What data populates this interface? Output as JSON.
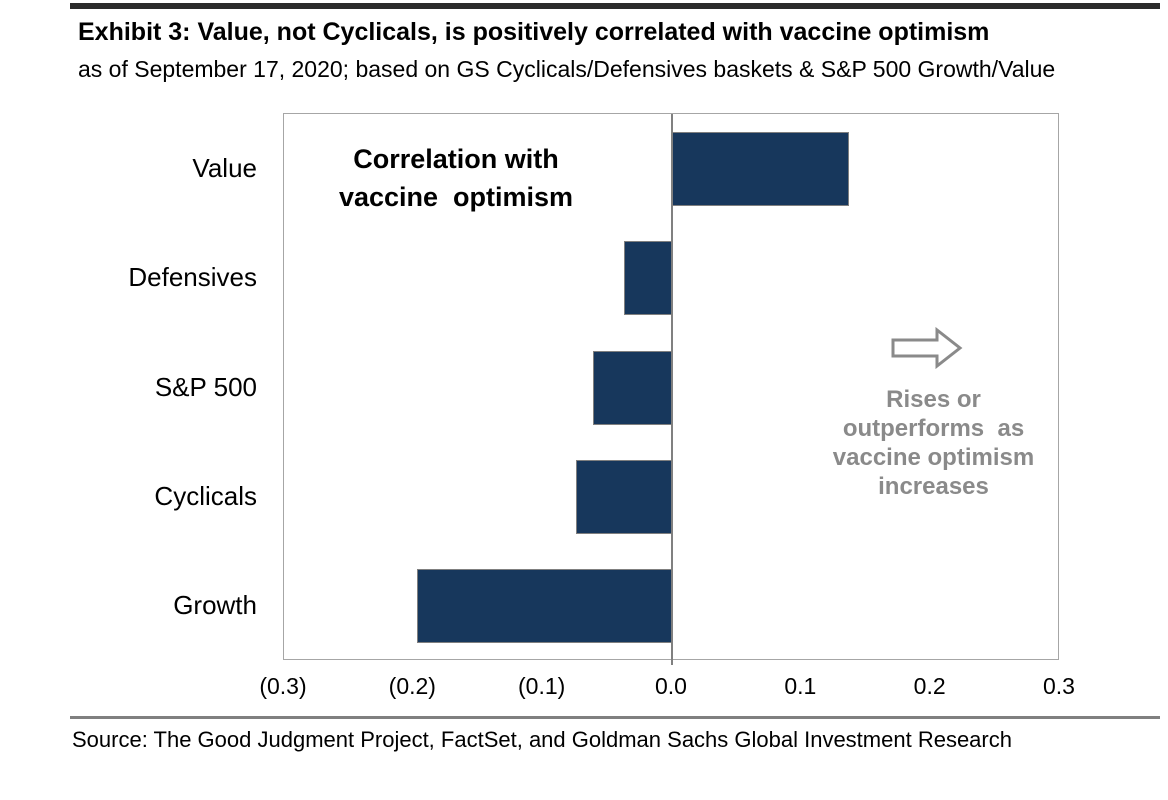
{
  "header": {
    "title": "Exhibit 3: Value, not Cyclicals, is positively correlated with vaccine optimism",
    "subtitle": "as of September 17, 2020; based on GS Cyclicals/Defensives baskets & S&P 500 Growth/Value"
  },
  "chart_data": {
    "type": "bar",
    "orientation": "horizontal",
    "categories": [
      "Value",
      "Defensives",
      "S&P 500",
      "Cyclicals",
      "Growth"
    ],
    "values": [
      0.137,
      -0.037,
      -0.061,
      -0.074,
      -0.197
    ],
    "xlim": [
      -0.3,
      0.3
    ],
    "x_tick_values": [
      -0.3,
      -0.2,
      -0.1,
      0,
      0.1,
      0.2,
      0.3
    ],
    "x_tick_labels": [
      "(0.3)",
      "(0.2)",
      "(0.1)",
      "0.0",
      "0.1",
      "0.2",
      "0.3"
    ],
    "grid": false,
    "legend": false,
    "bar_color": "#17375c",
    "bar_border_color": "#7f7f7f",
    "axis_line_color": "#808080",
    "plot_border_color": "#a6a6a6",
    "annotation": "Correlation with\nvaccine  optimism",
    "callout": {
      "arrow_icon": "right-block-arrow",
      "text": "Rises or\noutperforms  as\nvaccine optimism\nincreases",
      "color": "#8a8a8a"
    }
  },
  "footer": {
    "source": "Source: The Good Judgment Project, FactSet, and Goldman Sachs Global Investment Research"
  }
}
